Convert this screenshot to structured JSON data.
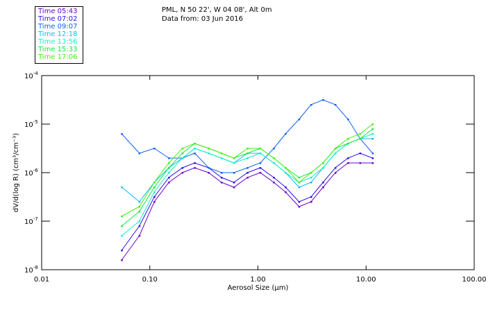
{
  "chart_data": {
    "type": "line",
    "title": "PML, N 50 22', W 04 08', Alt 0m",
    "subtitle": "Data from: 03 Jun 2016",
    "xlabel": "Aerosol Size (μm)",
    "ylabel": "dV/d(log R) (cm³/cm⁻³)",
    "x_scale": "log",
    "y_scale": "log",
    "xlim": [
      0.01,
      100
    ],
    "ylim": [
      1e-08,
      0.0001
    ],
    "x_ticks": [
      {
        "v": 0.01,
        "label": "0.01"
      },
      {
        "v": 0.1,
        "label": "0.10"
      },
      {
        "v": 1,
        "label": "1.00"
      },
      {
        "v": 10,
        "label": "10.00"
      },
      {
        "v": 100,
        "label": "100.00"
      }
    ],
    "y_ticks": [
      {
        "v": -4,
        "base": "10",
        "exp": "-4"
      },
      {
        "v": -5,
        "base": "10",
        "exp": "-5"
      },
      {
        "v": -6,
        "base": "10",
        "exp": "-6"
      },
      {
        "v": -7,
        "base": "10",
        "exp": "-7"
      },
      {
        "v": -8,
        "base": "10",
        "exp": "-8"
      }
    ],
    "x": [
      0.055,
      0.08,
      0.11,
      0.15,
      0.2,
      0.26,
      0.35,
      0.46,
      0.6,
      0.8,
      1.05,
      1.4,
      1.8,
      2.4,
      3.1,
      4.0,
      5.2,
      6.8,
      8.8,
      11.5
    ],
    "y_is_log10": true,
    "series": [
      {
        "name": "Time 05:43",
        "color": "#6a00c8",
        "values": [
          -7.8,
          -7.3,
          -6.6,
          -6.2,
          -6.0,
          -5.9,
          -6.0,
          -6.2,
          -6.3,
          -6.1,
          -6.0,
          -6.2,
          -6.4,
          -6.7,
          -6.6,
          -6.3,
          -6.0,
          -5.8,
          -5.8,
          -5.8
        ]
      },
      {
        "name": "Time 07:02",
        "color": "#2a10e8",
        "values": [
          -7.6,
          -7.1,
          -6.5,
          -6.1,
          -5.9,
          -5.8,
          -5.9,
          -6.1,
          -6.2,
          -6.0,
          -5.9,
          -6.1,
          -6.3,
          -6.6,
          -6.5,
          -6.2,
          -5.9,
          -5.7,
          -5.6,
          -5.7
        ]
      },
      {
        "name": "Time 09:07",
        "color": "#1060f0",
        "values": [
          -5.2,
          -5.6,
          -5.5,
          -5.7,
          -5.7,
          -5.6,
          -5.9,
          -6.0,
          -6.0,
          -5.9,
          -5.8,
          -5.5,
          -5.2,
          -4.9,
          -4.6,
          -4.5,
          -4.6,
          -4.9,
          -5.3,
          -5.6
        ]
      },
      {
        "name": "Time 12:18",
        "color": "#10b8f0",
        "values": [
          -6.3,
          -6.6,
          -6.2,
          -5.9,
          -5.7,
          -5.5,
          -5.6,
          -5.7,
          -5.8,
          -5.6,
          -5.6,
          -5.8,
          -6.0,
          -6.3,
          -6.2,
          -5.9,
          -5.6,
          -5.4,
          -5.3,
          -5.3
        ]
      },
      {
        "name": "Time 13:56",
        "color": "#10f0c8",
        "values": [
          -7.3,
          -7.0,
          -6.4,
          -6.0,
          -5.7,
          -5.5,
          -5.6,
          -5.7,
          -5.8,
          -5.7,
          -5.6,
          -5.8,
          -6.0,
          -6.2,
          -6.1,
          -5.9,
          -5.6,
          -5.4,
          -5.3,
          -5.2
        ]
      },
      {
        "name": "Time 15:33",
        "color": "#10e840",
        "values": [
          -7.1,
          -6.8,
          -6.3,
          -5.9,
          -5.6,
          -5.4,
          -5.5,
          -5.6,
          -5.7,
          -5.6,
          -5.5,
          -5.7,
          -5.9,
          -6.1,
          -6.0,
          -5.8,
          -5.5,
          -5.4,
          -5.3,
          -5.1
        ]
      },
      {
        "name": "Time 17:06",
        "color": "#40f010",
        "values": [
          -6.9,
          -6.7,
          -6.2,
          -5.8,
          -5.5,
          -5.4,
          -5.5,
          -5.6,
          -5.7,
          -5.5,
          -5.5,
          -5.7,
          -5.9,
          -6.2,
          -6.0,
          -5.8,
          -5.5,
          -5.3,
          -5.2,
          -5.0
        ]
      }
    ]
  }
}
